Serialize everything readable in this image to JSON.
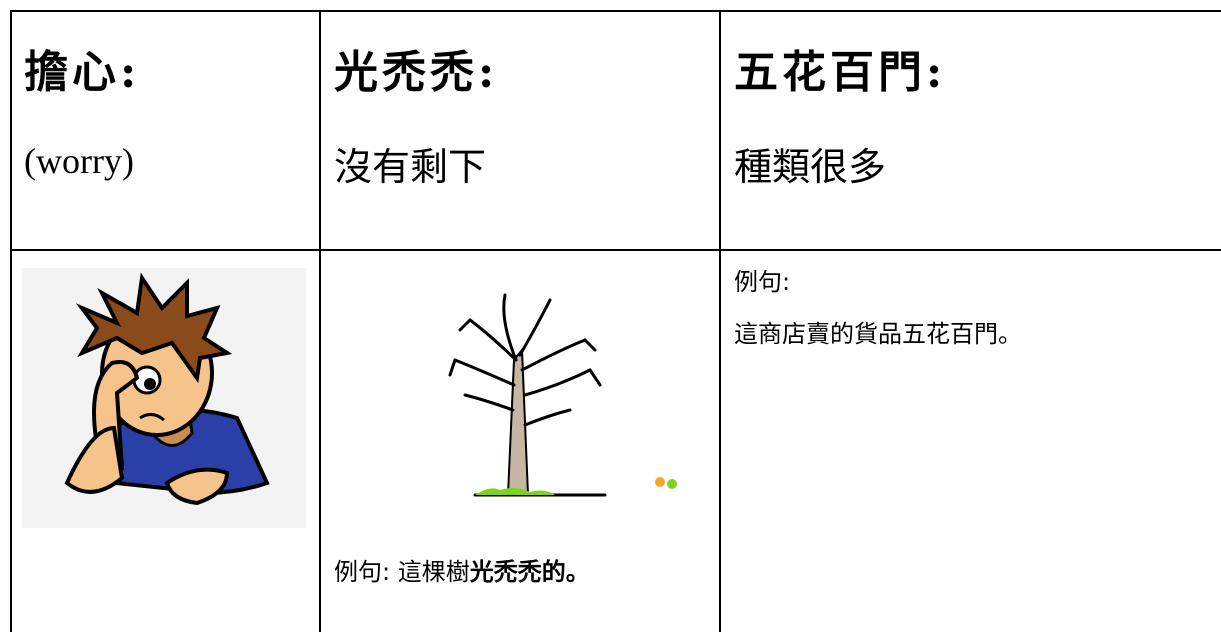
{
  "table": {
    "header_cells": [
      {
        "term": "擔心:",
        "meaning": "(worry)"
      },
      {
        "term": "光禿禿:",
        "meaning": "沒有剩下"
      },
      {
        "term": "五花百門:",
        "meaning": "種類很多"
      }
    ],
    "example_cells": [
      {
        "label": "例句:",
        "sentence": "這棵樹",
        "emphasis": "光禿禿的。"
      },
      {
        "label": "例句:",
        "sentence": "這商店賣的貨品五花百門。"
      }
    ]
  }
}
